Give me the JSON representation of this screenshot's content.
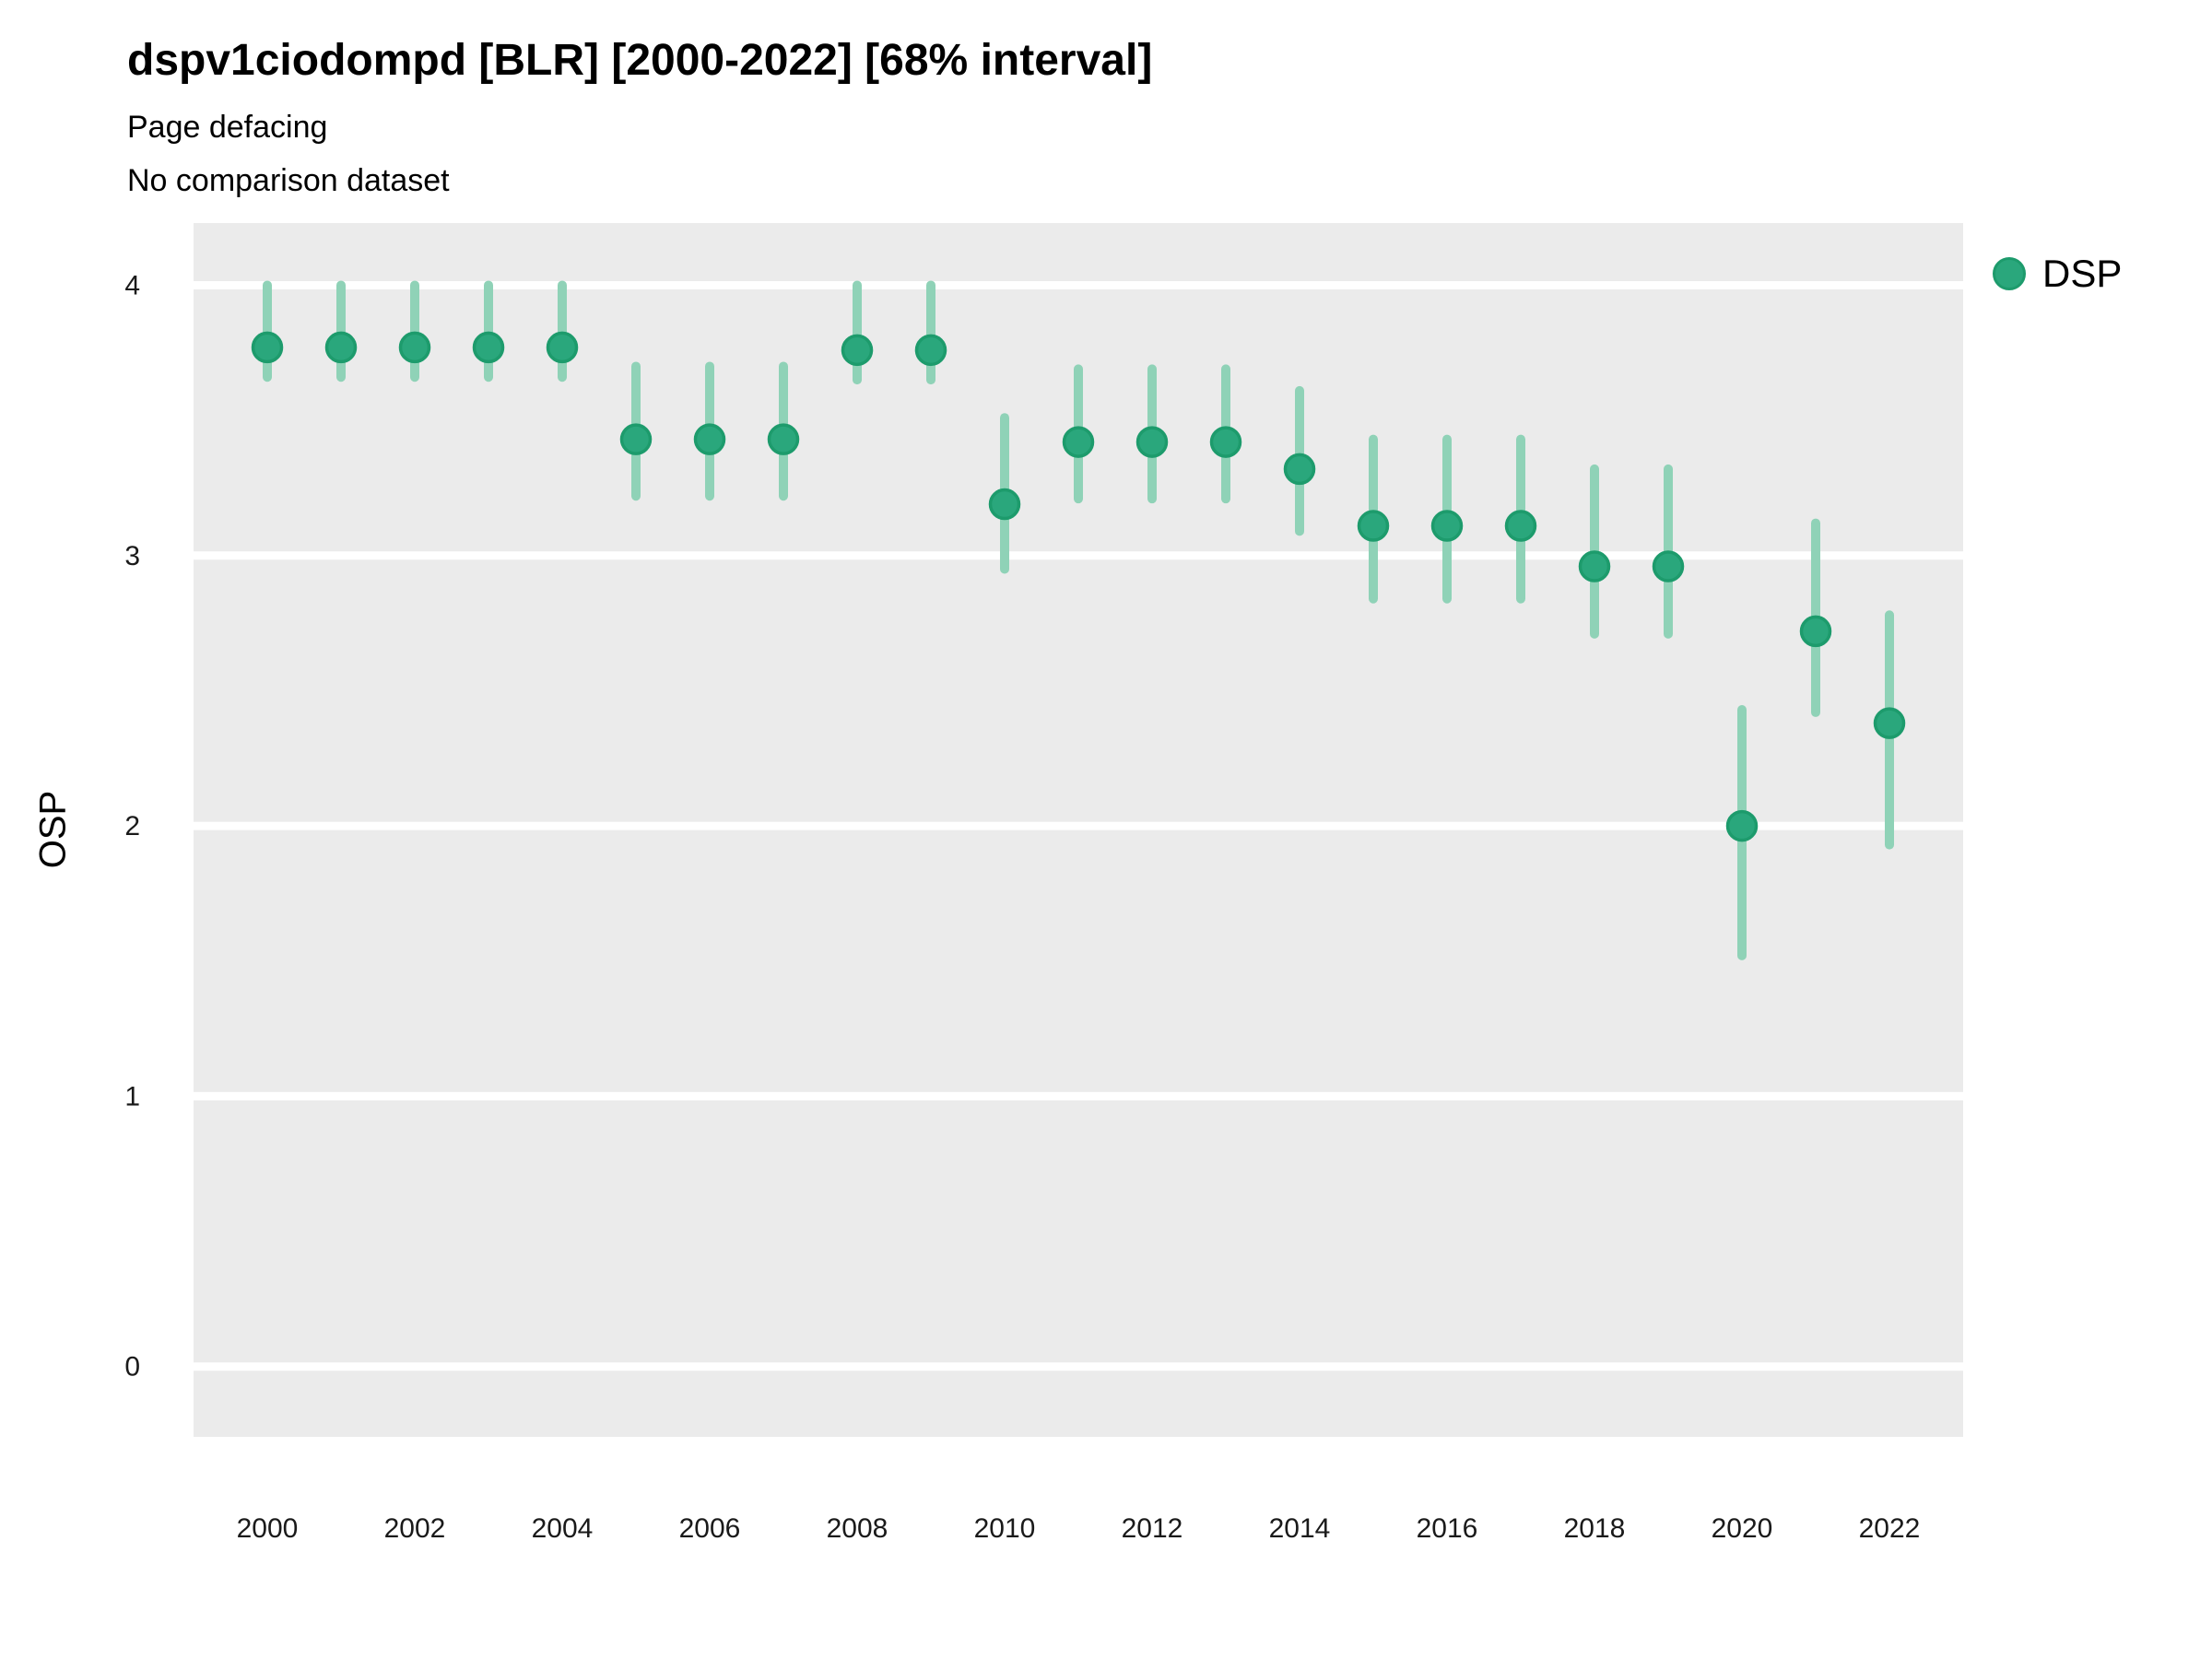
{
  "chart": {
    "colors": {
      "point": "#2aa77c",
      "point_stroke": "#1d9b6c",
      "interval_bar": "#8fd2b7",
      "panel_background": "#ebebeb",
      "gridline": "#ffffff",
      "tick_label": "#1a1a1a"
    }
  },
  "chart_data": {
    "type": "scatter",
    "title": "dspv1ciodompd [BLR] [2000-2022] [68% interval]",
    "subtitle_line1": "Page defacing",
    "subtitle_line2": "No comparison dataset",
    "xlabel": "",
    "ylabel": "OSP",
    "legend": [
      "DSP"
    ],
    "legend_position": "right",
    "grid": "major-horizontal-only",
    "interval_level": "68%",
    "x": [
      2000,
      2001,
      2002,
      2003,
      2004,
      2005,
      2006,
      2007,
      2008,
      2009,
      2010,
      2011,
      2012,
      2013,
      2014,
      2015,
      2016,
      2017,
      2018,
      2019,
      2020,
      2021,
      2022
    ],
    "series": [
      {
        "name": "DSP",
        "values": [
          3.77,
          3.77,
          3.77,
          3.77,
          3.77,
          3.43,
          3.43,
          3.43,
          3.76,
          3.76,
          3.19,
          3.42,
          3.42,
          3.42,
          3.32,
          3.11,
          3.11,
          3.11,
          2.96,
          2.96,
          2.0,
          2.72,
          2.38
        ],
        "lower_68": [
          3.66,
          3.66,
          3.66,
          3.66,
          3.66,
          3.22,
          3.22,
          3.22,
          3.65,
          3.65,
          2.95,
          3.21,
          3.21,
          3.21,
          3.09,
          2.84,
          2.84,
          2.84,
          2.71,
          2.71,
          1.52,
          2.42,
          1.93
        ],
        "upper_68": [
          4.0,
          4.0,
          4.0,
          4.0,
          4.0,
          3.7,
          3.7,
          3.7,
          4.0,
          4.0,
          3.51,
          3.69,
          3.69,
          3.69,
          3.61,
          3.43,
          3.43,
          3.43,
          3.32,
          3.32,
          2.43,
          3.12,
          2.78
        ]
      }
    ],
    "x_tick_labels": [
      2000,
      2002,
      2004,
      2006,
      2008,
      2010,
      2012,
      2014,
      2016,
      2018,
      2020,
      2022
    ],
    "y_ticks": [
      0,
      1,
      2,
      3,
      4
    ],
    "xlim": [
      1999,
      2023
    ],
    "ylim": [
      -0.26,
      4.23
    ]
  }
}
